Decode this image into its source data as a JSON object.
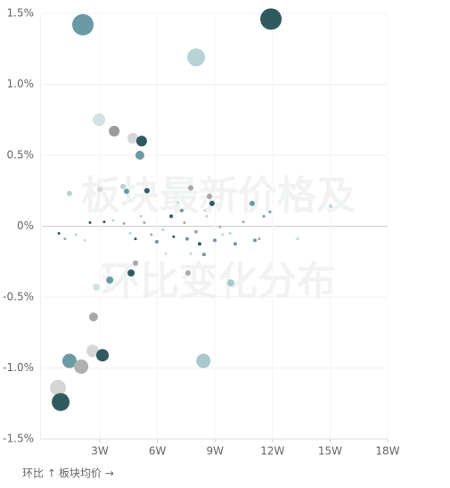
{
  "chart_data": {
    "type": "scatter",
    "watermark": [
      "板块最新价格及",
      "环比变化分布"
    ],
    "y_label": "环比 ↑",
    "x_label": "板块均价 →",
    "xlim": [
      0,
      180000
    ],
    "xticks": [
      {
        "value": 30000,
        "label": "3W"
      },
      {
        "value": 60000,
        "label": "6W"
      },
      {
        "value": 90000,
        "label": "9W"
      },
      {
        "value": 120000,
        "label": "12W"
      },
      {
        "value": 150000,
        "label": "15W"
      },
      {
        "value": 180000,
        "label": "18W"
      }
    ],
    "ylim": [
      -1.5,
      1.5
    ],
    "yticks": [
      {
        "value": -1.5,
        "label": "-1.5%"
      },
      {
        "value": -1.0,
        "label": "-1.0%"
      },
      {
        "value": -0.5,
        "label": "-0.5%"
      },
      {
        "value": 0,
        "label": "0%"
      },
      {
        "value": 0.5,
        "label": "0.5%"
      },
      {
        "value": 1.0,
        "label": "1.0%"
      },
      {
        "value": 1.5,
        "label": "1.5%"
      }
    ],
    "grid": true,
    "x": [
      21200,
      119200,
      80200,
      29600,
      37500,
      47200,
      51800,
      50900,
      54600,
      42100,
      43900,
      30000,
      14200,
      77400,
      87100,
      88500,
      109400,
      150300,
      35200,
      28200,
      46300,
      48600,
      76000,
      98300,
      26700,
      26300,
      31400,
      14200,
      20300,
      84000,
      8200,
      9600,
      8700,
      11900,
      17500,
      22100,
      24900,
      32300,
      37000,
      42600,
      45800,
      48600,
      51400,
      53200,
      56900,
      59700,
      62900,
      64400,
      67200,
      70800,
      72700,
      74100,
      75500,
      77400,
      80200,
      82000,
      84300,
      85700,
      89900,
      92700,
      97900,
      100600,
      104800,
      110800,
      113100,
      115500,
      118700,
      133100,
      94000,
      68500,
      84700
    ],
    "values": [
      1.42,
      1.46,
      1.19,
      0.75,
      0.67,
      0.62,
      0.6,
      0.5,
      0.25,
      0.28,
      0.245,
      0.26,
      0.23,
      0.27,
      0.21,
      0.16,
      0.16,
      0.14,
      -0.38,
      -0.43,
      -0.33,
      -0.26,
      -0.33,
      -0.4,
      -0.64,
      -0.88,
      -0.91,
      -0.95,
      -0.99,
      -0.95,
      -1.14,
      -1.24,
      -0.05,
      -0.09,
      -0.06,
      -0.1,
      0.025,
      0.03,
      0.04,
      0.02,
      -0.05,
      -0.09,
      0.07,
      0.025,
      -0.06,
      -0.11,
      -0.025,
      -0.195,
      0.07,
      0.165,
      0.11,
      0.025,
      -0.09,
      -0.195,
      -0.04,
      -0.125,
      -0.2,
      0.07,
      -0.1,
      -0.005,
      -0.05,
      -0.125,
      0.03,
      -0.1,
      -0.09,
      0.07,
      0.1,
      -0.09,
      -0.06,
      -0.075,
      0.11
    ],
    "sizes": [
      12,
      12,
      10,
      7,
      6,
      6,
      6,
      5,
      3,
      3,
      3,
      3,
      3,
      3,
      3,
      3,
      3,
      2,
      4,
      4,
      4,
      3,
      3,
      4,
      5,
      7,
      7,
      8,
      8,
      8,
      9,
      10,
      1.5,
      1.5,
      1.5,
      1.5,
      1.5,
      1.5,
      1.5,
      1.5,
      1.5,
      1.5,
      1.5,
      1.5,
      1.5,
      2,
      1.5,
      1.5,
      2,
      1.5,
      2,
      1.5,
      2,
      1.5,
      2,
      2,
      2,
      1.5,
      2,
      1.5,
      1.5,
      2,
      1.5,
      2,
      1.5,
      1.5,
      1.5,
      1.5,
      1.5,
      1.5,
      1.5
    ],
    "colors": [
      "#6a9aa3",
      "#2f5a60",
      "#b6d3d6",
      "#d0e2e4",
      "#9a9a9a",
      "#d6d6d6",
      "#2f5a60",
      "#6a9aa3",
      "#2f5a60",
      "#b6d3d6",
      "#6a9aa3",
      "#d6d6d6",
      "#b6d3d6",
      "#a8a8a8",
      "#a8a8a8",
      "#2f5a60",
      "#6a9aa3",
      "#b6d3d6",
      "#6a9aa3",
      "#d0e2e4",
      "#2f5a60",
      "#a8a8a8",
      "#a8a8a8",
      "#a8c8cb",
      "#a8a8a8",
      "#d6d6d6",
      "#2f5a60",
      "#6a9aa3",
      "#b0b0b0",
      "#a8c8cb",
      "#d6d6d6",
      "#2f5a60",
      "#2f5a60",
      "#a8a8a8",
      "#b6d3d6",
      "#d6d6d6",
      "#2f5a60",
      "#2f5a60",
      "#b6d3d6",
      "#a8a8a8",
      "#b6d3d6",
      "#2f5a60",
      "#b6d3d6",
      "#a8a8a8",
      "#a8a8a8",
      "#6a9aa3",
      "#b6d3d6",
      "#d6d6d6",
      "#2f5a60",
      "#b6d3d6",
      "#6a9aa3",
      "#a8a8a8",
      "#6a9aa3",
      "#b6d3d6",
      "#a8a8a8",
      "#2f5a60",
      "#6a9aa3",
      "#b6d3d6",
      "#6a9aa3",
      "#a8a8a8",
      "#b6d3d6",
      "#6a9aa3",
      "#a8a8a8",
      "#6a9aa3",
      "#a8a8a8",
      "#6a9aa3",
      "#6a9aa3",
      "#b6d3d6",
      "#b6d3d6",
      "#2f5a60",
      "#d6d6d6"
    ]
  }
}
